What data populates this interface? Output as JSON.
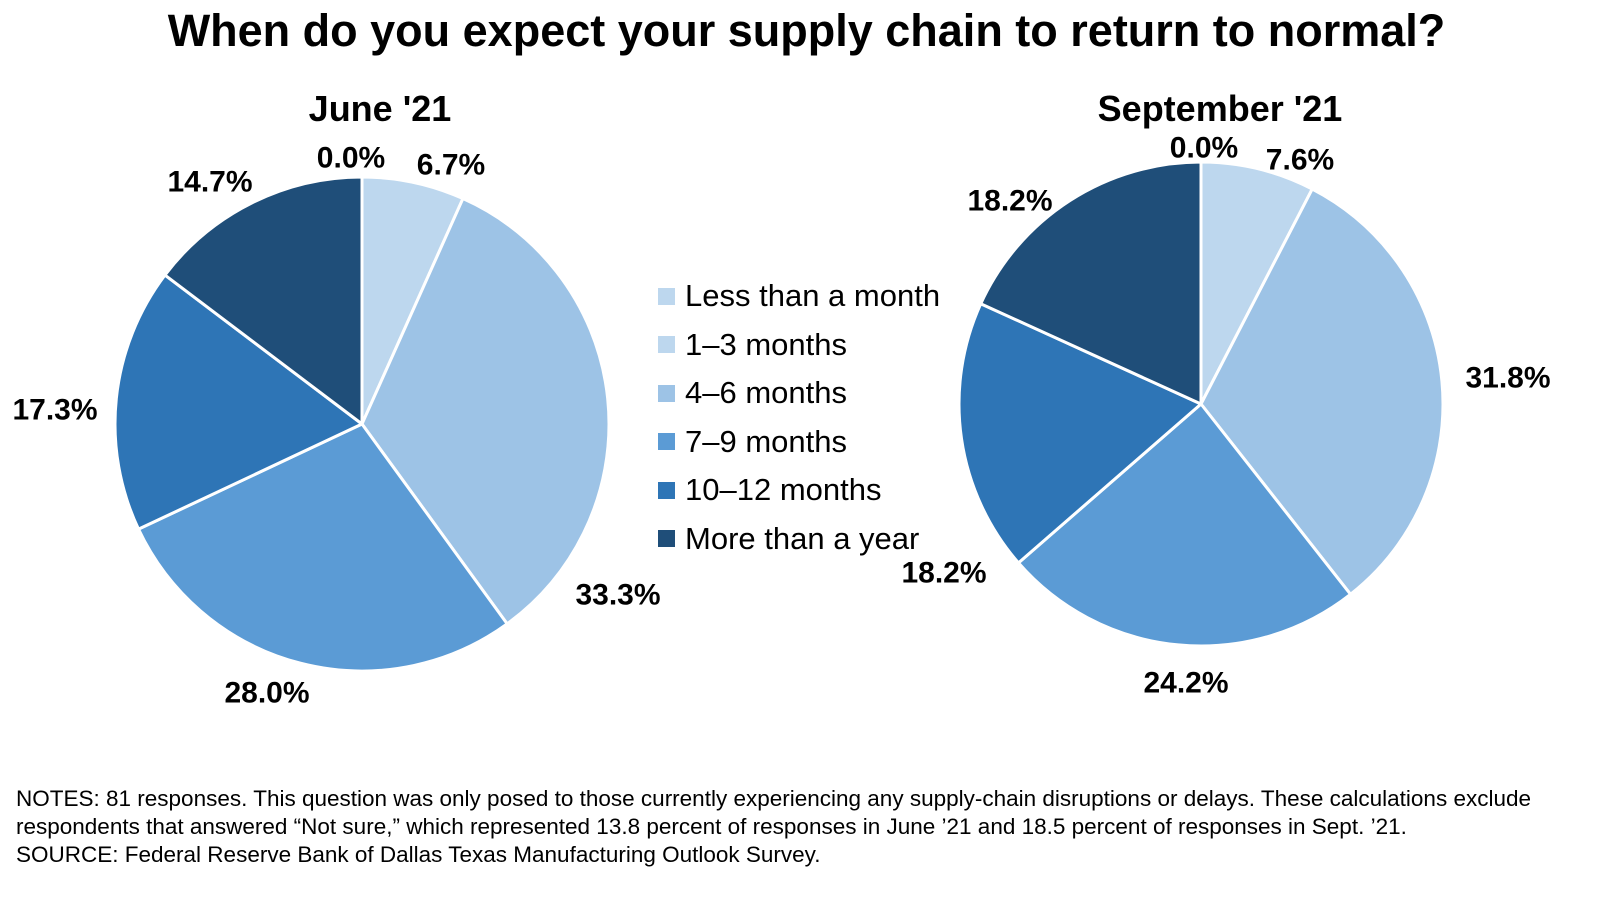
{
  "title": "When do you expect your supply chain to return to normal?",
  "legend": [
    {
      "label": "Less than a month",
      "color": "#bdd7ee"
    },
    {
      "label": "1–3 months",
      "color": "#bdd7ee"
    },
    {
      "label": "4–6 months",
      "color": "#9dc3e6"
    },
    {
      "label": "7–9 months",
      "color": "#5b9bd5"
    },
    {
      "label": "10–12 months",
      "color": "#2e75b6"
    },
    {
      "label": "More than a year",
      "color": "#1f4e79"
    }
  ],
  "chart_data": [
    {
      "type": "pie",
      "title": "June '21",
      "categories": [
        "Less than a month",
        "1–3 months",
        "4–6 months",
        "7–9 months",
        "10–12 months",
        "More than a year"
      ],
      "values": [
        0.0,
        6.7,
        33.3,
        28.0,
        17.3,
        14.7
      ],
      "labels": [
        "0.0%",
        "6.7%",
        "33.3%",
        "28.0%",
        "17.3%",
        "14.7%"
      ]
    },
    {
      "type": "pie",
      "title": "September '21",
      "categories": [
        "Less than a month",
        "1–3 months",
        "4–6 months",
        "7–9 months",
        "10–12 months",
        "More than a year"
      ],
      "values": [
        0.0,
        7.6,
        31.8,
        24.2,
        18.2,
        18.2
      ],
      "labels": [
        "0.0%",
        "7.6%",
        "31.8%",
        "24.2%",
        "18.2%",
        "18.2%"
      ]
    }
  ],
  "notes": {
    "line1": "NOTES: 81 responses. This question was only posed to those currently experiencing any supply-chain disruptions or delays. These calculations exclude respondents that answered “Not sure,” which represented 13.8 percent of responses in June ’21 and 18.5 percent of responses in Sept. ’21.",
    "source": "SOURCE: Federal Reserve Bank of Dallas Texas Manufacturing Outlook Survey."
  }
}
